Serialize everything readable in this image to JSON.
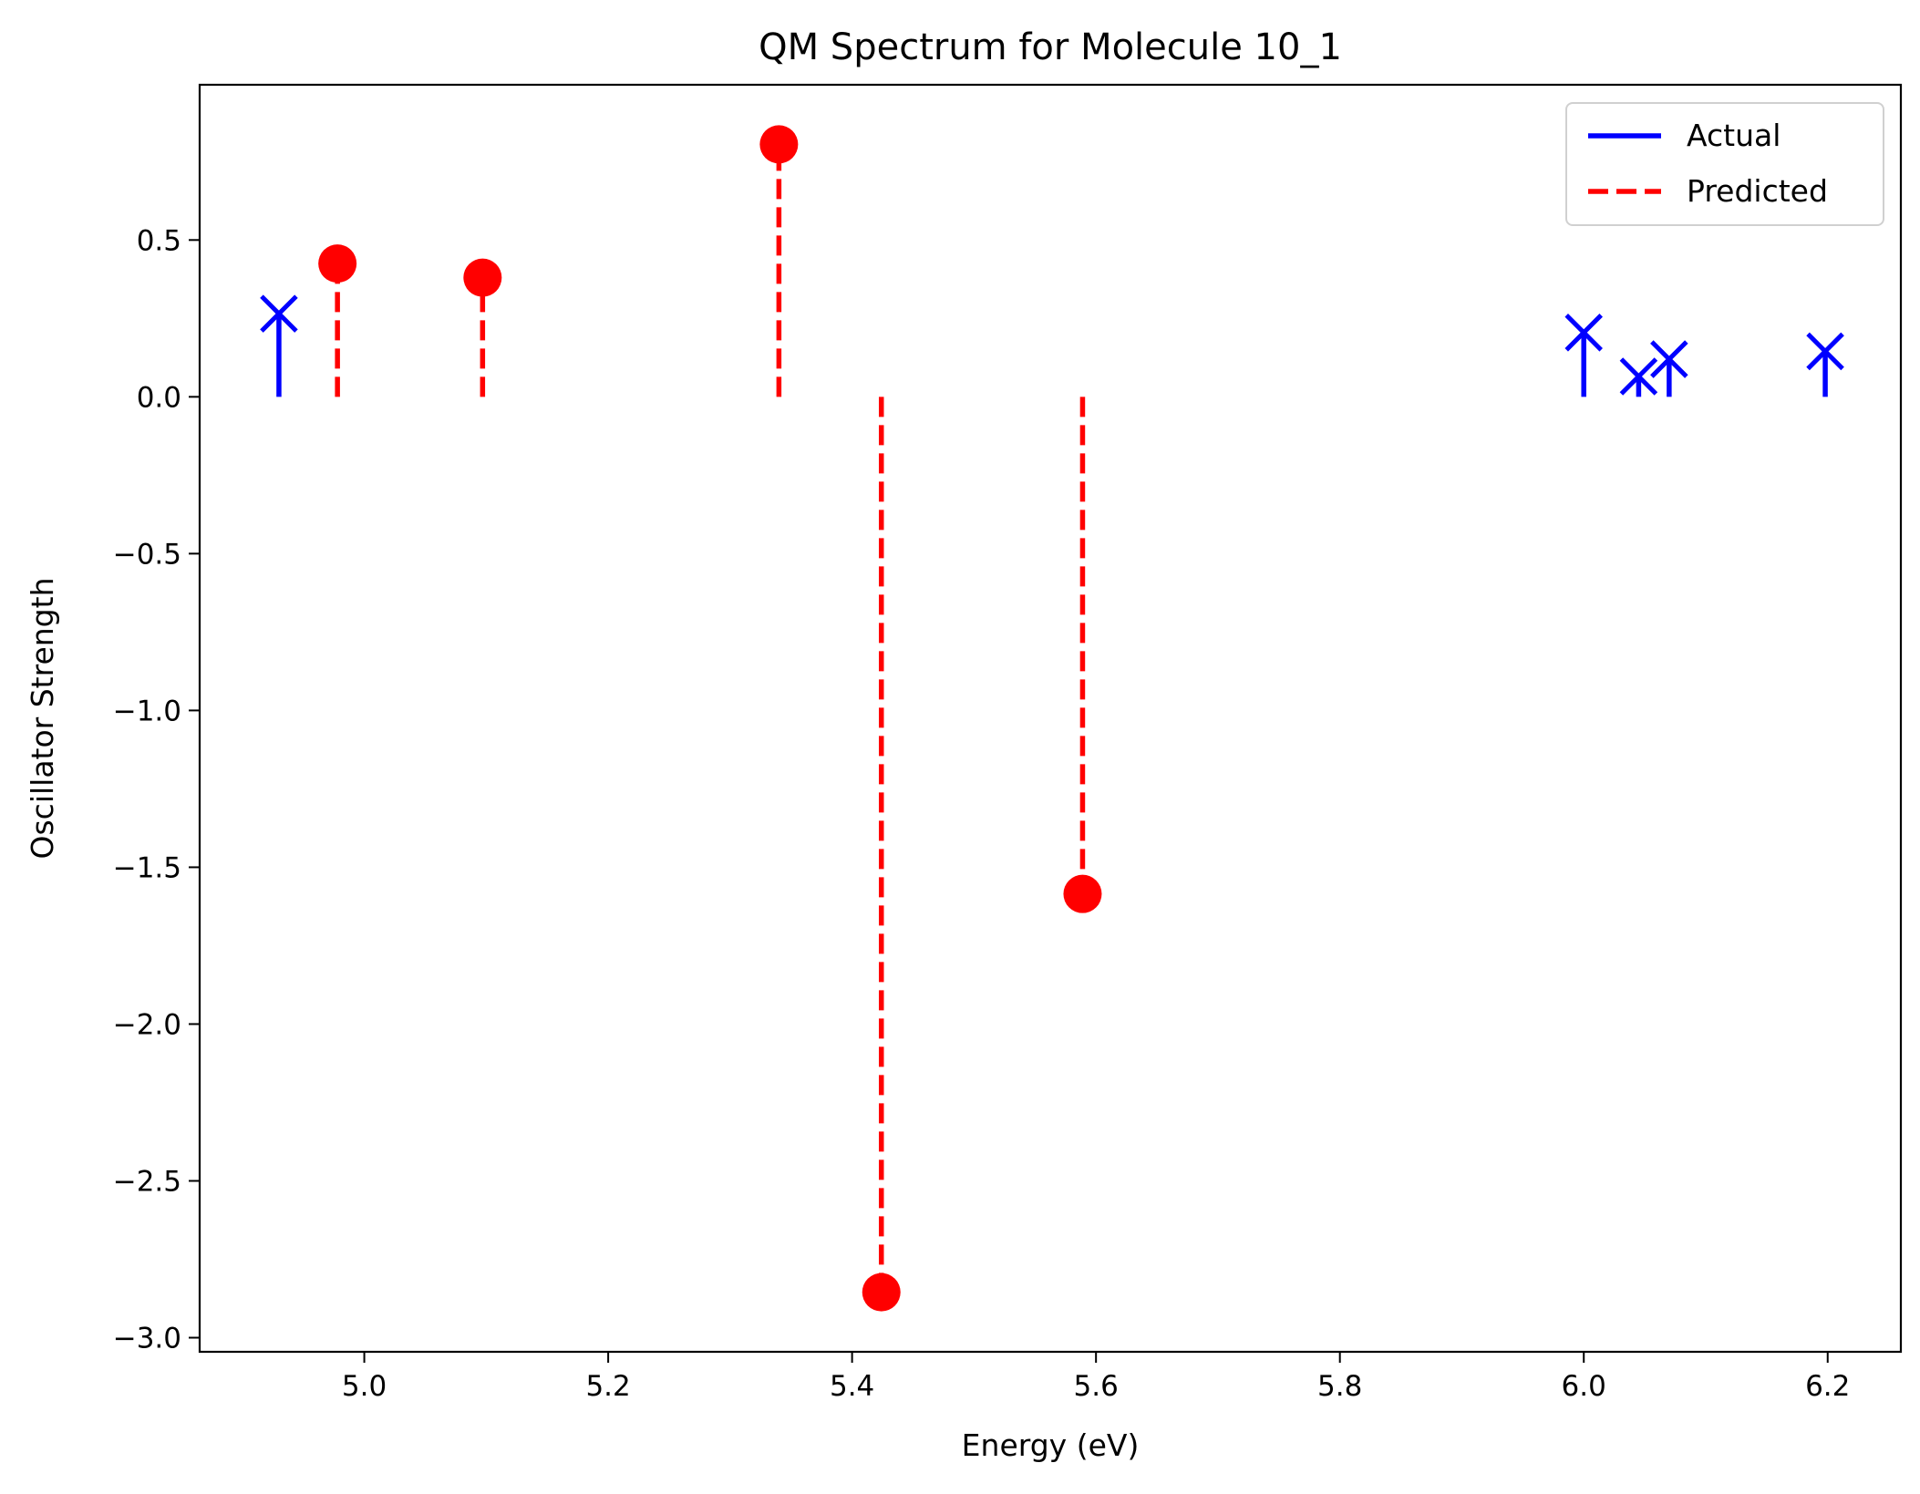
{
  "chart_data": {
    "type": "scatter",
    "title": "QM Spectrum for Molecule 10_1",
    "xlabel": "Energy (eV)",
    "ylabel": "Oscillator Strength",
    "xlim": [
      4.865,
      6.26
    ],
    "ylim": [
      -3.045,
      0.995
    ],
    "xticks": [
      5.0,
      5.2,
      5.4,
      5.6,
      5.8,
      6.0,
      6.2
    ],
    "xtick_labels": [
      "5.0",
      "5.2",
      "5.4",
      "5.6",
      "5.8",
      "6.0",
      "6.2"
    ],
    "yticks": [
      0.5,
      0.0,
      -0.5,
      -1.0,
      -1.5,
      -2.0,
      -2.5,
      -3.0
    ],
    "ytick_labels": [
      "0.5",
      "0.0",
      "−0.5",
      "−1.0",
      "−1.5",
      "−2.0",
      "−2.5",
      "−3.0"
    ],
    "grid": false,
    "legend_position": "top-right",
    "series": [
      {
        "name": "Actual",
        "style": "solid stem, x marker",
        "color": "#0000ff",
        "x": [
          4.93,
          6.0,
          6.045,
          6.07,
          6.198
        ],
        "y": [
          0.265,
          0.205,
          0.065,
          0.12,
          0.145
        ]
      },
      {
        "name": "Predicted",
        "style": "dashed stem, filled circle marker",
        "color": "#ff0000",
        "x": [
          4.978,
          5.097,
          5.34,
          5.424,
          5.589
        ],
        "y": [
          0.425,
          0.38,
          0.805,
          -2.855,
          -1.585
        ]
      }
    ]
  }
}
